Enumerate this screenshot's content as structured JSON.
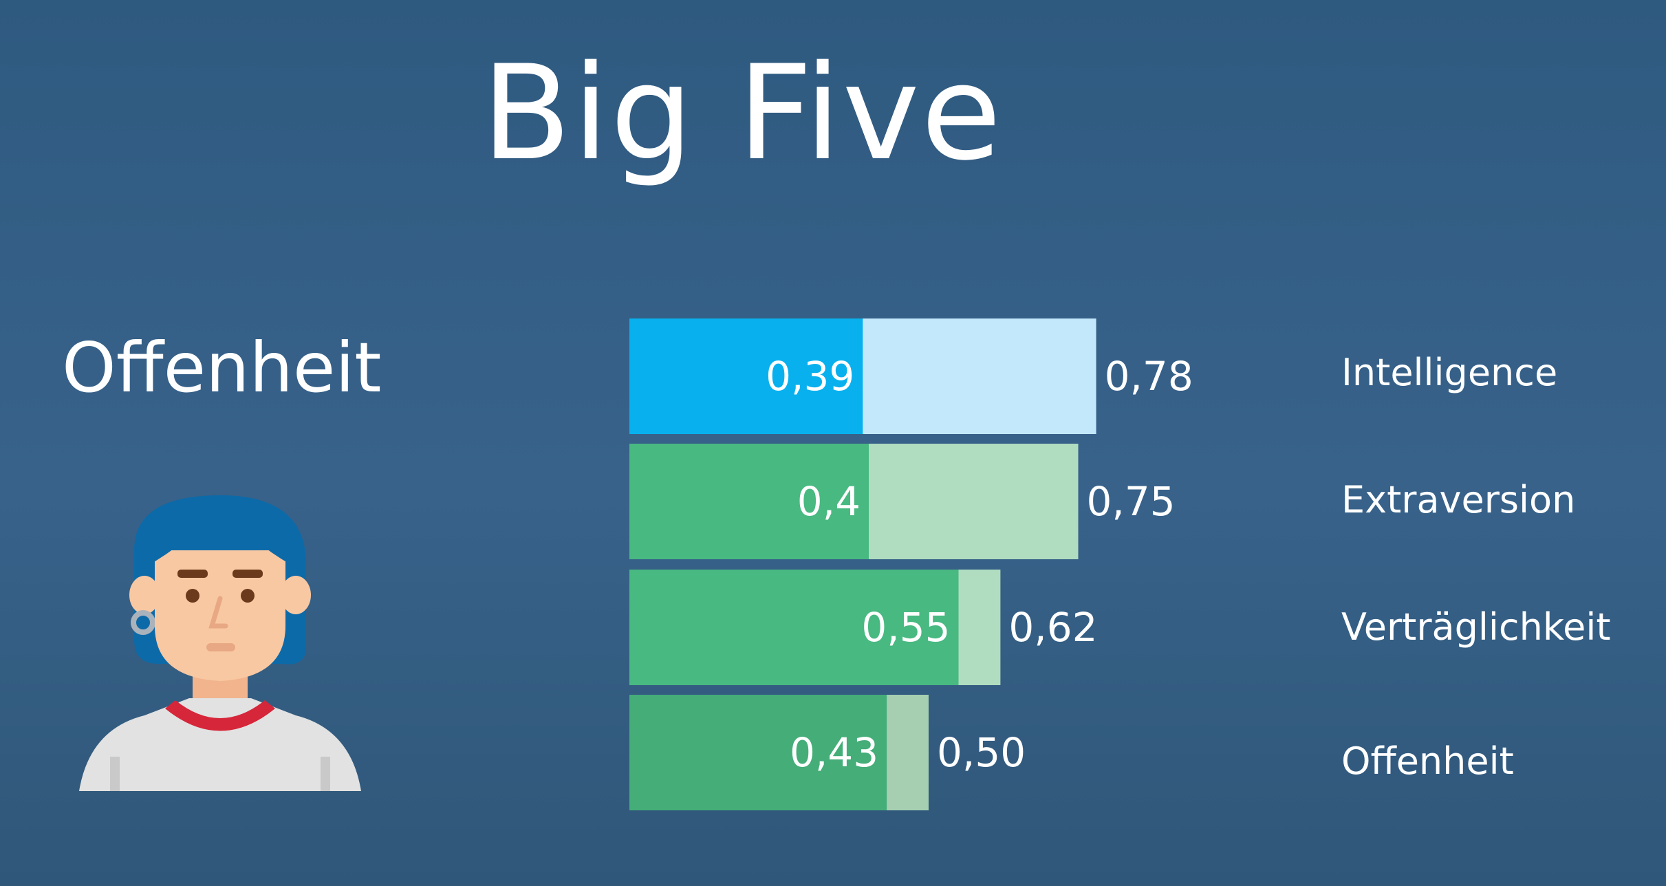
{
  "title": "Big Five",
  "subtitle": "Offenheit",
  "chart_data": {
    "type": "bar",
    "orientation": "horizontal",
    "categories": [
      "Intelligence",
      "Extraversion",
      "Verträglichkeit",
      "Offenheit"
    ],
    "series": [
      {
        "values": [
          0.39,
          0.4,
          0.55,
          0.43
        ],
        "labels": [
          "0,39",
          "0,4",
          "0,55",
          "0,43"
        ]
      },
      {
        "values": [
          0.78,
          0.75,
          0.62,
          0.5
        ],
        "labels": [
          "0,78",
          "0,75",
          "0,62",
          "0,50"
        ]
      }
    ],
    "xlim": [
      0,
      1
    ],
    "grid": false,
    "colors": {
      "highlight_inner": "#08b1ee",
      "highlight_outer": "#c3e7fb",
      "inner": "#48b981",
      "outer": "#b0dcbf",
      "last_inner": "#44ad78",
      "last_outer": "#a6cfb1"
    }
  },
  "avatar": {
    "icon": "woman-avatar-icon",
    "hair_color": "#0d6aa8",
    "skin_color": "#f8c8a2",
    "shirt_color": "#e0e0e0",
    "collar_color": "#d6263a"
  }
}
